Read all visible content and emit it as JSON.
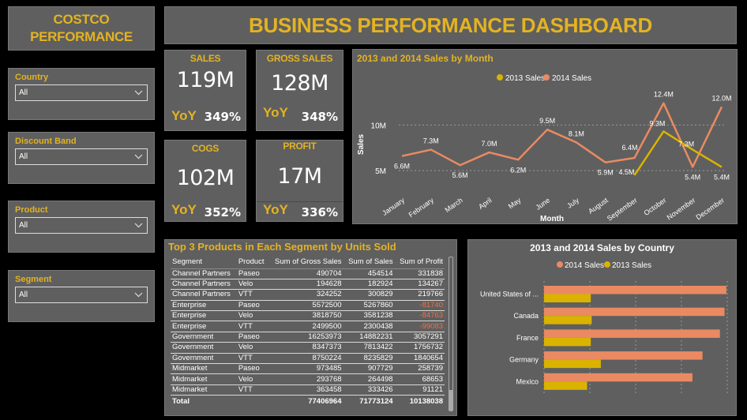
{
  "logo": {
    "line1": "COSTCO",
    "line2": "PERFORMANCE"
  },
  "header": {
    "title": "BUSINESS PERFORMANCE DASHBOARD"
  },
  "slicers": [
    {
      "label": "Country",
      "value": "All",
      "icon": "chevron-down-icon"
    },
    {
      "label": "Discount Band",
      "value": "All",
      "icon": "chevron-down-icon"
    },
    {
      "label": "Product",
      "value": "All",
      "icon": "chevron-down-icon"
    },
    {
      "label": "Segment",
      "value": "All",
      "icon": "chevron-down-icon"
    }
  ],
  "kpis": [
    {
      "title": "SALES",
      "value": "119M",
      "yoy_label": "YoY",
      "yoy": "349%"
    },
    {
      "title": "GROSS SALES",
      "value": "128M",
      "yoy_label": "YoY",
      "yoy": "348%"
    },
    {
      "title": "COGS",
      "value": "102M",
      "yoy_label": "YoY",
      "yoy": "352%"
    },
    {
      "title": "PROFIT",
      "value": "17M",
      "yoy_label": "YoY",
      "yoy": "336%"
    }
  ],
  "colors": {
    "accent_gold": "#e3b322",
    "series_2013": "#d9b300",
    "series_2014": "#ea8a62",
    "negative": "#e8744c",
    "panel": "#5f5f5f",
    "background": "#000000"
  },
  "table": {
    "title": "Top 3 Products in Each Segment by Units Sold",
    "columns": [
      "Segment",
      "Product",
      "Sum of Gross Sales",
      "Sum of Sales",
      "Sum of Profit"
    ],
    "rows": [
      [
        "Channel Partners",
        "Paseo",
        "490704",
        "454514",
        "331838"
      ],
      [
        "Channel Partners",
        "Velo",
        "194628",
        "182924",
        "134267"
      ],
      [
        "Channel Partners",
        "VTT",
        "324252",
        "300829",
        "219766"
      ],
      [
        "Enterprise",
        "Paseo",
        "5572500",
        "5267860",
        "-81740"
      ],
      [
        "Enterprise",
        "Velo",
        "3818750",
        "3581238",
        "-84763"
      ],
      [
        "Enterprise",
        "VTT",
        "2499500",
        "2300438",
        "-99083"
      ],
      [
        "Government",
        "Paseo",
        "16253973",
        "14882231",
        "3057291"
      ],
      [
        "Government",
        "Velo",
        "8347373",
        "7813422",
        "1756732"
      ],
      [
        "Government",
        "VTT",
        "8750224",
        "8235829",
        "1840654"
      ],
      [
        "Midmarket",
        "Paseo",
        "973485",
        "907729",
        "258739"
      ],
      [
        "Midmarket",
        "Velo",
        "293768",
        "264498",
        "68653"
      ],
      [
        "Midmarket",
        "VTT",
        "363458",
        "333426",
        "91121"
      ]
    ],
    "total": [
      "Total",
      "",
      "77406964",
      "71773124",
      "10138038"
    ]
  },
  "chart_data": [
    {
      "type": "line",
      "title": "2013 and 2014 Sales by Month",
      "xlabel": "Month",
      "ylabel": "Sales",
      "legend_position": "top-right",
      "grid": true,
      "yticks": [
        "5M",
        "10M"
      ],
      "ytick_values": [
        5,
        10
      ],
      "ylim": [
        2.5,
        13.5
      ],
      "units": "M",
      "categories": [
        "January",
        "February",
        "March",
        "April",
        "May",
        "June",
        "July",
        "August",
        "September",
        "October",
        "November",
        "December"
      ],
      "series": [
        {
          "name": "2013 Sales",
          "values": [
            null,
            null,
            null,
            null,
            null,
            null,
            null,
            null,
            4.5,
            9.3,
            7.3,
            5.4
          ],
          "labels": [
            null,
            null,
            null,
            null,
            null,
            null,
            null,
            null,
            "4.5M",
            "9.3M",
            "7.3M",
            "5.4M"
          ]
        },
        {
          "name": "2014 Sales",
          "values": [
            6.6,
            7.3,
            5.6,
            7.0,
            6.2,
            9.5,
            8.1,
            5.9,
            6.4,
            12.4,
            5.4,
            12.0
          ],
          "labels": [
            "6.6M",
            "7.3M",
            "5.6M",
            "7.0M",
            "6.2M",
            "9.5M",
            "8.1M",
            "5.9M",
            "6.4M",
            "12.4M",
            "5.4M",
            "12.0M"
          ]
        }
      ]
    },
    {
      "type": "bar",
      "orientation": "horizontal",
      "title": "2013 and 2014 Sales by Country",
      "legend_position": "top-center",
      "grid": true,
      "xlim": [
        0,
        20
      ],
      "units": "M",
      "categories": [
        "United States of ...",
        "Canada",
        "France",
        "Germany",
        "Mexico"
      ],
      "series": [
        {
          "name": "2014 Sales",
          "values": [
            19.9,
            19.7,
            19.2,
            17.3,
            16.2
          ]
        },
        {
          "name": "2013 Sales",
          "values": [
            5.1,
            5.2,
            5.1,
            6.2,
            4.7
          ]
        }
      ]
    }
  ]
}
